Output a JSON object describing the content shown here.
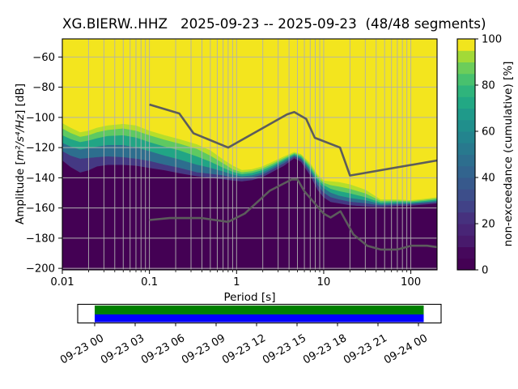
{
  "title": "XG.BIERW..HHZ   2025-09-23 -- 2025-09-23  (48/48 segments)",
  "colors": {
    "background": "#ffffff",
    "cmap_top_yellow": "#f3e51e",
    "cmap_bottom_purple": "#440154",
    "grid": "#b0b0b0",
    "noise_model_line": "#5c5c5c",
    "frame": "#000000",
    "timeline_green": "#008000",
    "timeline_blue": "#0000ff"
  },
  "chart_data": {
    "type": "heatmap",
    "title": "XG.BIERW..HHZ   2025-09-23 -- 2025-09-23  (48/48 segments)",
    "xlabel": "Period [s]",
    "ylabel": "Amplitude [m²/s⁴/Hz] [dB]",
    "ylabel_parts": {
      "prefix": "Amplitude [",
      "math": "m²/s⁴/Hz",
      "suffix": "] [dB]"
    },
    "xscale": "log",
    "xlim": [
      0.01,
      200
    ],
    "ylim": [
      -201,
      -48
    ],
    "grid": true,
    "x_ticks": [
      "0.01",
      "0.1",
      "1",
      "10",
      "100"
    ],
    "x_tick_values": [
      0.01,
      0.1,
      1,
      10,
      100
    ],
    "y_ticks": [
      "−60",
      "−80",
      "−100",
      "−120",
      "−140",
      "−160",
      "−180",
      "−200"
    ],
    "y_tick_values": [
      -60,
      -80,
      -100,
      -120,
      -140,
      -160,
      -180,
      -200
    ],
    "colorbar": {
      "label": "non-exceedance (cumulative) [%]",
      "range": [
        0,
        100
      ],
      "ticks": [
        0,
        20,
        40,
        60,
        80,
        100
      ],
      "tick_labels": [
        "0",
        "20",
        "40",
        "60",
        "80",
        "100"
      ],
      "stops": [
        "#440154",
        "#46085c",
        "#481a6c",
        "#482576",
        "#46317e",
        "#414287",
        "#3d4e8a",
        "#37598c",
        "#32648e",
        "#2d6e8e",
        "#28798e",
        "#23848e",
        "#208f8c",
        "#1f9a8a",
        "#22a884",
        "#2fb47c",
        "#48c16e",
        "#6ccd5a",
        "#a2da37",
        "#f1e51d"
      ]
    },
    "ppsd_bands": {
      "description": "non-exceedance percentile curves of PSD distribution, dB vs period",
      "levels_pct": [
        95,
        80,
        60,
        40,
        20,
        5
      ],
      "band_colors": [
        "#b5de2b",
        "#5ec962",
        "#21a585",
        "#2d6e8e",
        "#443983"
      ],
      "above_color": "#f3e51e",
      "below_color": "#440154",
      "periods": [
        0.01,
        0.0125,
        0.016,
        0.02,
        0.025,
        0.033,
        0.05,
        0.07,
        0.1,
        0.15,
        0.22,
        0.35,
        0.5,
        0.7,
        0.9,
        1.15,
        1.5,
        2,
        2.6,
        3.5,
        4.6,
        5.5,
        7,
        8.5,
        10,
        12,
        15,
        20,
        30,
        45,
        70,
        100,
        140,
        200
      ],
      "curves_db": [
        [
          -104,
          -107,
          -110,
          -109,
          -107,
          -105.5,
          -104.5,
          -105.5,
          -109,
          -112,
          -114.5,
          -118,
          -122,
          -128,
          -132,
          -135,
          -134.5,
          -132.5,
          -129.5,
          -126,
          -123,
          -124.5,
          -130.5,
          -138,
          -142,
          -142.5,
          -143,
          -144.5,
          -148,
          -154.5,
          -154.5,
          -155,
          -154.2,
          -153
        ],
        [
          -107.5,
          -110.5,
          -113,
          -112,
          -110,
          -108.5,
          -107.5,
          -109,
          -112,
          -115,
          -117.5,
          -121,
          -125.5,
          -130.5,
          -134.5,
          -136.5,
          -135.8,
          -133.8,
          -130.8,
          -127,
          -123.8,
          -125.3,
          -132,
          -139.5,
          -143.5,
          -145,
          -146,
          -147.5,
          -150.5,
          -155.5,
          -155.3,
          -155.7,
          -154.9,
          -153.8
        ],
        [
          -112,
          -114.5,
          -116.5,
          -115.5,
          -114,
          -112.5,
          -112,
          -113.5,
          -116.5,
          -119.5,
          -122,
          -126,
          -129.5,
          -133.5,
          -136.2,
          -137.8,
          -137,
          -135,
          -132,
          -128,
          -124.5,
          -126.2,
          -133.5,
          -141,
          -145,
          -147.5,
          -149,
          -150.5,
          -153,
          -156.5,
          -156.1,
          -156.4,
          -155.6,
          -154.6
        ],
        [
          -117,
          -119.5,
          -121.5,
          -120.5,
          -119.5,
          -118.5,
          -118.5,
          -120,
          -122.5,
          -125.5,
          -128,
          -131.5,
          -133.5,
          -136,
          -138,
          -139.2,
          -138.5,
          -136.5,
          -133.2,
          -129,
          -125.2,
          -127,
          -135,
          -142.5,
          -147,
          -150,
          -152,
          -153.5,
          -155,
          -157.5,
          -157,
          -157,
          -156.3,
          -155.4
        ],
        [
          -122.5,
          -125.5,
          -127.5,
          -127,
          -126.5,
          -126,
          -126.5,
          -127.5,
          -129,
          -131.5,
          -133.5,
          -136.5,
          -137.5,
          -138.5,
          -140,
          -140.7,
          -140,
          -138,
          -134.5,
          -130.5,
          -126,
          -128,
          -136.5,
          -145,
          -150,
          -153,
          -154.5,
          -156,
          -157,
          -158.5,
          -157.8,
          -157.7,
          -157,
          -156.2
        ],
        [
          -128.5,
          -133,
          -136.5,
          -135,
          -132.5,
          -131.5,
          -131.5,
          -132,
          -133.5,
          -135,
          -137,
          -139,
          -140,
          -141,
          -141.8,
          -142.3,
          -141.5,
          -139.5,
          -136,
          -132,
          -127,
          -129.5,
          -138.5,
          -148,
          -153,
          -156,
          -157,
          -158.2,
          -159,
          -159.5,
          -158.7,
          -158.5,
          -157.8,
          -157
        ]
      ]
    },
    "noise_models": {
      "color": "#5c5c5c",
      "nhnm": {
        "name": "Peterson New High Noise Model",
        "periods": [
          0.1,
          0.22,
          0.32,
          0.8,
          3.8,
          4.6,
          6.3,
          7.9,
          15.4,
          20,
          200
        ],
        "db": [
          -91.5,
          -97.4,
          -110.5,
          -120,
          -98,
          -96.5,
          -101,
          -113.5,
          -120,
          -138.5,
          -128.5
        ]
      },
      "nlnm": {
        "name": "Peterson New Low Noise Model",
        "periods": [
          0.1,
          0.17,
          0.4,
          0.8,
          1.24,
          2.4,
          4.3,
          5,
          6,
          10,
          12,
          15.6,
          21.9,
          31.6,
          45,
          70,
          101,
          154,
          200
        ],
        "db": [
          -168,
          -166.7,
          -166.7,
          -169.2,
          -163.7,
          -148.6,
          -141.1,
          -141.1,
          -149,
          -163.8,
          -166.3,
          -162.2,
          -177.5,
          -185,
          -187.5,
          -187.5,
          -185,
          -185,
          -185.9
        ]
      }
    },
    "timeline": {
      "tick_labels": [
        "09-23 00",
        "09-23 03",
        "09-23 06",
        "09-23 09",
        "09-23 12",
        "09-23 15",
        "09-23 18",
        "09-23 21",
        "09-24 00"
      ],
      "data_bar_color": "#008000",
      "processed_bar_color": "#0000ff"
    }
  }
}
